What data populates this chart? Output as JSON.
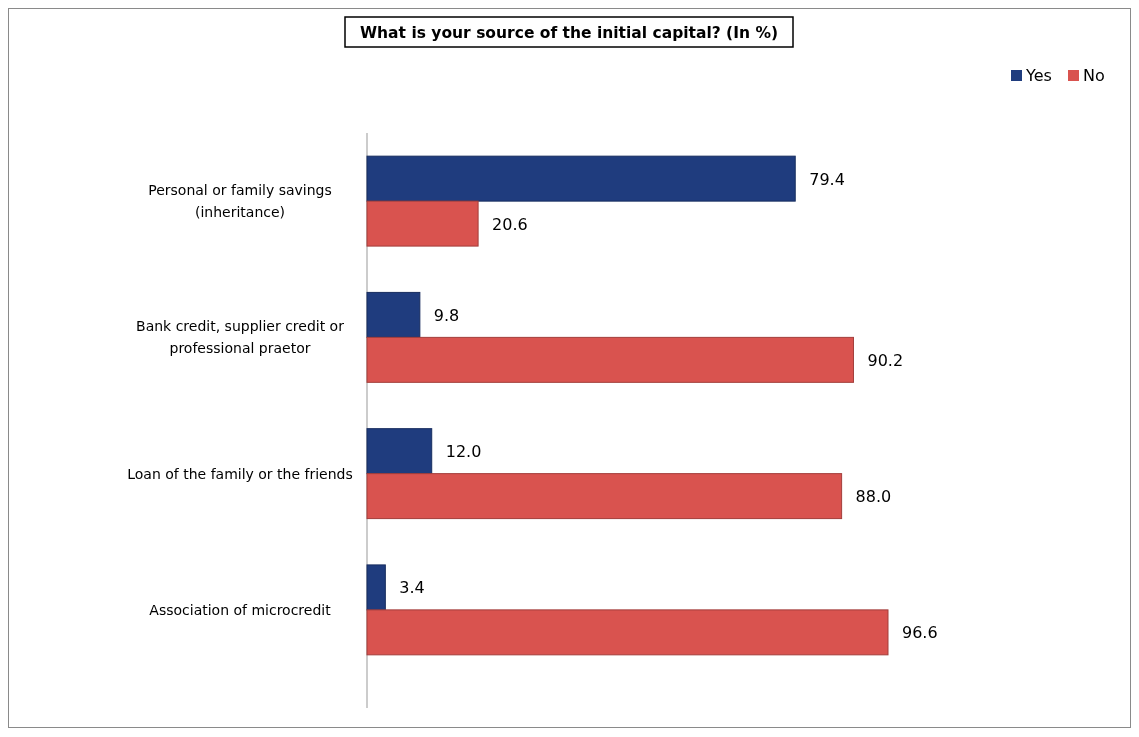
{
  "chart_data": {
    "type": "bar",
    "orientation": "horizontal",
    "title": "What is your source of the initial capital? (In %)",
    "categories": [
      "Personal or family savings (inheritance)",
      "Bank credit, supplier credit or professional praetor",
      "Loan of the family or the friends",
      "Association of microcredit"
    ],
    "series": [
      {
        "name": "Yes",
        "color": "#1f3c7e",
        "values": [
          79.4,
          9.8,
          12.0,
          3.4
        ],
        "value_labels": [
          "79.4",
          "9.8",
          "12.0",
          "3.4"
        ]
      },
      {
        "name": "No",
        "color": "#d9534f",
        "values": [
          20.6,
          90.2,
          88.0,
          96.6
        ],
        "value_labels": [
          "20.6",
          "90.2",
          "88.0",
          "96.6"
        ]
      }
    ],
    "tick_labels": "y",
    "legend": "top right"
  }
}
